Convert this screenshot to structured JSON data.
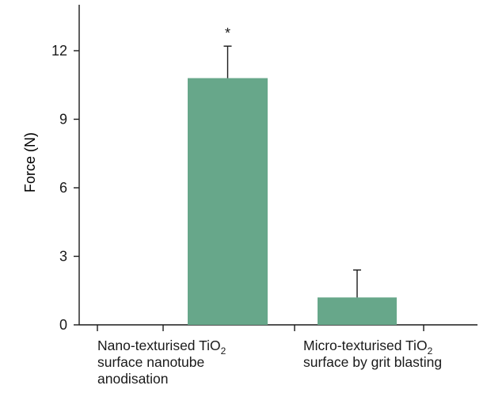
{
  "chart_data": {
    "type": "bar",
    "ylabel": "Force (N)",
    "ylim": [
      0,
      14
    ],
    "yticks": [
      0,
      3,
      6,
      9,
      12
    ],
    "grid": false,
    "categories": [
      {
        "lines": [
          {
            "text": "Nano-texturised TiO",
            "sub": "2"
          },
          {
            "text": "surface nanotube"
          },
          {
            "text": "anodisation"
          }
        ]
      },
      {
        "lines": [
          {
            "text": "Micro-texturised TiO",
            "sub": "2"
          },
          {
            "text": "surface by grit blasting"
          }
        ]
      }
    ],
    "values": [
      10.8,
      1.2
    ],
    "errors": [
      1.4,
      1.2
    ],
    "significance": [
      "*",
      ""
    ],
    "bar_color": "#67a78a",
    "axis_color": "#1a1a1a"
  }
}
